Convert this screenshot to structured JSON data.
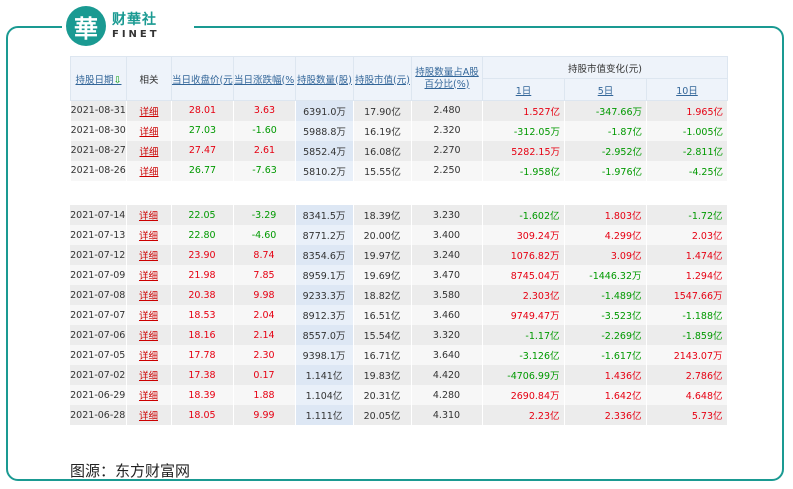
{
  "brand": {
    "mark": "華",
    "name_cn": "财華社",
    "name_en": "FINET"
  },
  "headers": {
    "date": "持股日期",
    "sort_icon": "⇩",
    "related": "相关",
    "close": "当日收盘价(元)",
    "change": "当日涨跌幅(%)",
    "shares": "持股数量(股)",
    "value": "持股市值(元)",
    "pct_line1": "持股数量占A股",
    "pct_line2": "百分比(%)",
    "group": "持股市值变化(元)",
    "d1": "1日",
    "d5": "5日",
    "d10": "10日"
  },
  "rows_top": [
    {
      "date": "2021-08-31",
      "rel": "详细",
      "close": "28.01",
      "chg": "3.63",
      "shares": "6391.0万",
      "value": "17.90亿",
      "pct": "2.480",
      "d1": "1.527亿",
      "d5": "-347.66万",
      "d10": "1.965亿",
      "ccls": "red",
      "d1c": "red",
      "d5c": "green",
      "d10c": "red"
    },
    {
      "date": "2021-08-30",
      "rel": "详细",
      "close": "27.03",
      "chg": "-1.60",
      "shares": "5988.8万",
      "value": "16.19亿",
      "pct": "2.320",
      "d1": "-312.05万",
      "d5": "-1.87亿",
      "d10": "-1.005亿",
      "ccls": "green",
      "d1c": "green",
      "d5c": "green",
      "d10c": "green"
    },
    {
      "date": "2021-08-27",
      "rel": "详细",
      "close": "27.47",
      "chg": "2.61",
      "shares": "5852.4万",
      "value": "16.08亿",
      "pct": "2.270",
      "d1": "5282.15万",
      "d5": "-2.952亿",
      "d10": "-2.811亿",
      "ccls": "red",
      "d1c": "red",
      "d5c": "green",
      "d10c": "green"
    },
    {
      "date": "2021-08-26",
      "rel": "详细",
      "close": "26.77",
      "chg": "-7.63",
      "shares": "5810.2万",
      "value": "15.55亿",
      "pct": "2.250",
      "d1": "-1.958亿",
      "d5": "-1.976亿",
      "d10": "-4.25亿",
      "ccls": "green",
      "d1c": "green",
      "d5c": "green",
      "d10c": "green"
    }
  ],
  "rows_bottom": [
    {
      "date": "2021-07-14",
      "rel": "详细",
      "close": "22.05",
      "chg": "-3.29",
      "shares": "8341.5万",
      "value": "18.39亿",
      "pct": "3.230",
      "d1": "-1.602亿",
      "d5": "1.803亿",
      "d10": "-1.72亿",
      "ccls": "green",
      "d1c": "green",
      "d5c": "red",
      "d10c": "green"
    },
    {
      "date": "2021-07-13",
      "rel": "详细",
      "close": "22.80",
      "chg": "-4.60",
      "shares": "8771.2万",
      "value": "20.00亿",
      "pct": "3.400",
      "d1": "309.24万",
      "d5": "4.299亿",
      "d10": "2.03亿",
      "ccls": "green",
      "d1c": "red",
      "d5c": "red",
      "d10c": "red"
    },
    {
      "date": "2021-07-12",
      "rel": "详细",
      "close": "23.90",
      "chg": "8.74",
      "shares": "8354.6万",
      "value": "19.97亿",
      "pct": "3.240",
      "d1": "1076.82万",
      "d5": "3.09亿",
      "d10": "1.474亿",
      "ccls": "red",
      "d1c": "red",
      "d5c": "red",
      "d10c": "red"
    },
    {
      "date": "2021-07-09",
      "rel": "详细",
      "close": "21.98",
      "chg": "7.85",
      "shares": "8959.1万",
      "value": "19.69亿",
      "pct": "3.470",
      "d1": "8745.04万",
      "d5": "-1446.32万",
      "d10": "1.294亿",
      "ccls": "red",
      "d1c": "red",
      "d5c": "green",
      "d10c": "red"
    },
    {
      "date": "2021-07-08",
      "rel": "详细",
      "close": "20.38",
      "chg": "9.98",
      "shares": "9233.3万",
      "value": "18.82亿",
      "pct": "3.580",
      "d1": "2.303亿",
      "d5": "-1.489亿",
      "d10": "1547.66万",
      "ccls": "red",
      "d1c": "red",
      "d5c": "green",
      "d10c": "red"
    },
    {
      "date": "2021-07-07",
      "rel": "详细",
      "close": "18.53",
      "chg": "2.04",
      "shares": "8912.3万",
      "value": "16.51亿",
      "pct": "3.460",
      "d1": "9749.47万",
      "d5": "-3.523亿",
      "d10": "-1.188亿",
      "ccls": "red",
      "d1c": "red",
      "d5c": "green",
      "d10c": "green"
    },
    {
      "date": "2021-07-06",
      "rel": "详细",
      "close": "18.16",
      "chg": "2.14",
      "shares": "8557.0万",
      "value": "15.54亿",
      "pct": "3.320",
      "d1": "-1.17亿",
      "d5": "-2.269亿",
      "d10": "-1.859亿",
      "ccls": "red",
      "d1c": "green",
      "d5c": "green",
      "d10c": "green"
    },
    {
      "date": "2021-07-05",
      "rel": "详细",
      "close": "17.78",
      "chg": "2.30",
      "shares": "9398.1万",
      "value": "16.71亿",
      "pct": "3.640",
      "d1": "-3.126亿",
      "d5": "-1.617亿",
      "d10": "2143.07万",
      "ccls": "red",
      "d1c": "green",
      "d5c": "green",
      "d10c": "red"
    },
    {
      "date": "2021-07-02",
      "rel": "详细",
      "close": "17.38",
      "chg": "0.17",
      "shares": "1.141亿",
      "value": "19.83亿",
      "pct": "4.420",
      "d1": "-4706.99万",
      "d5": "1.436亿",
      "d10": "2.786亿",
      "ccls": "red",
      "d1c": "green",
      "d5c": "red",
      "d10c": "red"
    },
    {
      "date": "2021-06-29",
      "rel": "详细",
      "close": "18.39",
      "chg": "1.88",
      "shares": "1.104亿",
      "value": "20.31亿",
      "pct": "4.280",
      "d1": "2690.84万",
      "d5": "1.642亿",
      "d10": "4.648亿",
      "ccls": "red",
      "d1c": "red",
      "d5c": "red",
      "d10c": "red"
    },
    {
      "date": "2021-06-28",
      "rel": "详细",
      "close": "18.05",
      "chg": "9.99",
      "shares": "1.111亿",
      "value": "20.05亿",
      "pct": "4.310",
      "d1": "2.23亿",
      "d5": "2.336亿",
      "d10": "5.73亿",
      "ccls": "red",
      "d1c": "red",
      "d5c": "red",
      "d10c": "red"
    }
  ],
  "caption": "图源：东方财富网"
}
